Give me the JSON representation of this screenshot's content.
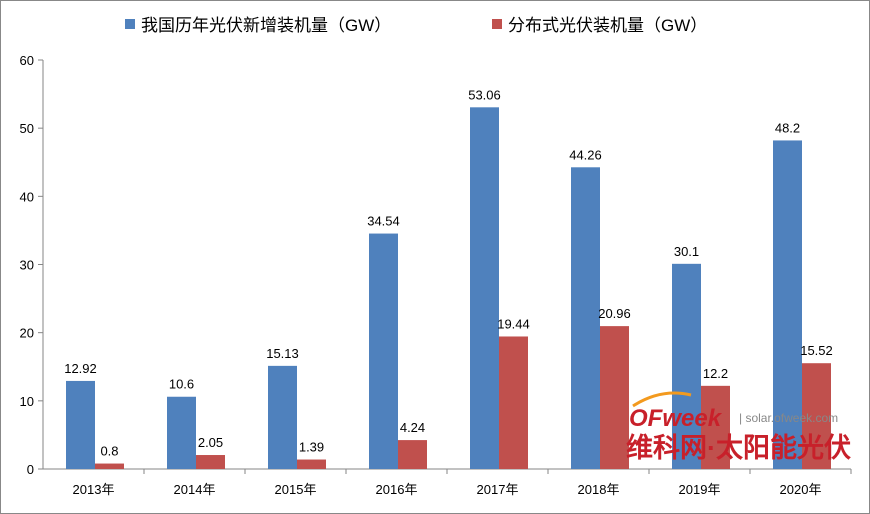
{
  "chart_data": {
    "type": "bar",
    "title": "",
    "xlabel": "",
    "ylabel": "",
    "ylim": [
      0,
      60
    ],
    "yticks": [
      "0",
      "10",
      "20",
      "30",
      "40",
      "50",
      "60"
    ],
    "grid": false,
    "legend_position": "top",
    "categories": [
      "2013年",
      "2014年",
      "2015年",
      "2016年",
      "2017年",
      "2018年",
      "2019年",
      "2020年"
    ],
    "series": [
      {
        "name": "我国历年光伏新增装机量（GW）",
        "color": "#4f81bd",
        "values": [
          12.92,
          10.6,
          15.13,
          34.54,
          53.06,
          44.26,
          30.1,
          48.2
        ],
        "labels": [
          "12.92",
          "10.6",
          "15.13",
          "34.54",
          "53.06",
          "44.26",
          "30.1",
          "48.2"
        ]
      },
      {
        "name": "分布式光伏装机量（GW）",
        "color": "#c0504d",
        "values": [
          0.8,
          2.05,
          1.39,
          4.24,
          19.44,
          20.96,
          12.2,
          15.52
        ],
        "labels": [
          "0.8",
          "2.05",
          "1.39",
          "4.24",
          "19.44",
          "20.96",
          "12.2",
          "15.52"
        ]
      }
    ]
  },
  "watermark": {
    "logo": "OFweek",
    "site": "solar.ofweek.com",
    "caption": "维科网·太阳能光伏"
  }
}
